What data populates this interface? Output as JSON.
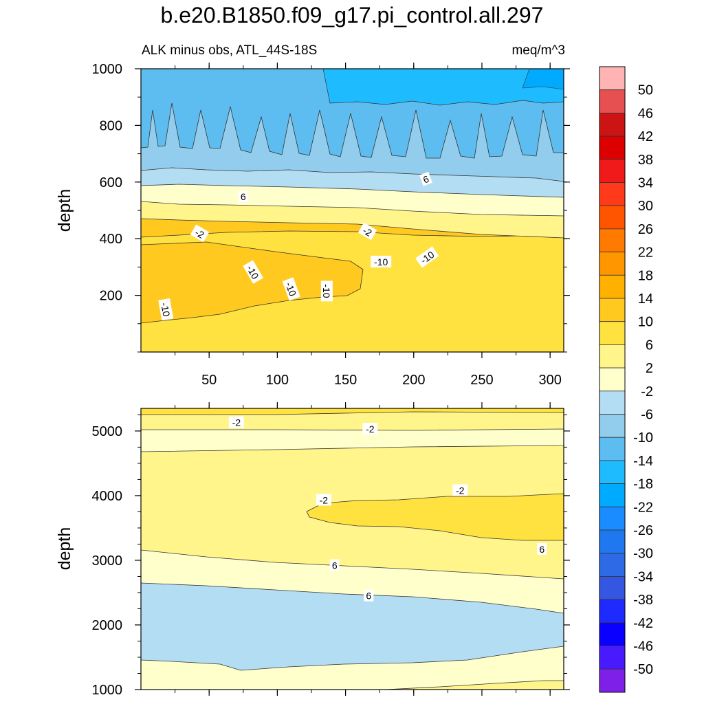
{
  "title": "b.e20.B1850.f09_g17.pi_control.all.297",
  "subtitle_left": "ALK minus obs, ATL_44S-18S",
  "subtitle_right": "meq/m^3",
  "colors": {
    "levels": [
      {
        "label": "50",
        "color": "#ffb3b3"
      },
      {
        "label": "46",
        "color": "#e65050"
      },
      {
        "label": "42",
        "color": "#cc1414"
      },
      {
        "label": "38",
        "color": "#dc0000"
      },
      {
        "label": "34",
        "color": "#f01a1a"
      },
      {
        "label": "30",
        "color": "#ff3a1a"
      },
      {
        "label": "26",
        "color": "#ff5500"
      },
      {
        "label": "22",
        "color": "#ff7a00"
      },
      {
        "label": "18",
        "color": "#ff9600"
      },
      {
        "label": "14",
        "color": "#ffb000"
      },
      {
        "label": "10",
        "color": "#ffc91f"
      },
      {
        "label": "6",
        "color": "#ffe23f"
      },
      {
        "label": "2",
        "color": "#fff58a"
      },
      {
        "label": "-2",
        "color": "#ffffcc"
      },
      {
        "label": "-6",
        "color": "#b3ddf2"
      },
      {
        "label": "-10",
        "color": "#93cdee"
      },
      {
        "label": "-14",
        "color": "#5ebdf0"
      },
      {
        "label": "-18",
        "color": "#1ebcff"
      },
      {
        "label": "-22",
        "color": "#00aaff"
      },
      {
        "label": "-26",
        "color": "#1a8cff"
      },
      {
        "label": "-30",
        "color": "#1f78f0"
      },
      {
        "label": "-34",
        "color": "#2e6ae6"
      },
      {
        "label": "-38",
        "color": "#3556e0"
      },
      {
        "label": "-42",
        "color": "#1f2aff"
      },
      {
        "label": "-46",
        "color": "#0a00ff"
      },
      {
        "label": "-50",
        "color": "#4a1aff"
      },
      {
        "label": "",
        "color": "#7f20e8"
      }
    ]
  },
  "chart_data": [
    {
      "type": "contour",
      "panel": "upper",
      "xlabel": "",
      "ylabel": "depth",
      "xlim": [
        0,
        310
      ],
      "ylim": [
        1000,
        0
      ],
      "x_ticks": [
        50,
        100,
        150,
        200,
        250,
        300
      ],
      "x_tick_labels": [
        "50",
        "100",
        "150",
        "200",
        "250",
        "300"
      ],
      "y_ticks": [
        200,
        400,
        600,
        800,
        1000
      ],
      "y_tick_labels": [
        "200",
        "400",
        "600",
        "800",
        "1000"
      ],
      "contour_labels": [
        {
          "text": "-10",
          "x": 18,
          "y": 150,
          "angle": 80
        },
        {
          "text": "-10",
          "x": 110,
          "y": 222,
          "angle": 70
        },
        {
          "text": "-10",
          "x": 136,
          "y": 215,
          "angle": 90
        },
        {
          "text": "-10",
          "x": 82,
          "y": 282,
          "angle": 60
        },
        {
          "text": "-10",
          "x": 176,
          "y": 318,
          "angle": 0
        },
        {
          "text": "-10",
          "x": 210,
          "y": 334,
          "angle": -35
        },
        {
          "text": "-2",
          "x": 43,
          "y": 418,
          "angle": 30
        },
        {
          "text": "-2",
          "x": 166,
          "y": 425,
          "angle": 30
        },
        {
          "text": "6",
          "x": 75,
          "y": 548,
          "angle": 0
        },
        {
          "text": "6",
          "x": 209,
          "y": 610,
          "angle": -20
        }
      ]
    },
    {
      "type": "contour",
      "panel": "lower",
      "xlabel": "",
      "ylabel": "depth",
      "xlim": [
        0,
        310
      ],
      "ylim": [
        5350,
        1000
      ],
      "y_ticks": [
        1000,
        2000,
        3000,
        4000,
        5000
      ],
      "y_tick_labels": [
        "1000",
        "2000",
        "3000",
        "4000",
        "5000"
      ],
      "contour_labels": [
        {
          "text": "6",
          "x": 167,
          "y": 2450,
          "angle": 0
        },
        {
          "text": "6",
          "x": 142,
          "y": 2920,
          "angle": 0
        },
        {
          "text": "6",
          "x": 294,
          "y": 3170,
          "angle": 0
        },
        {
          "text": "-2",
          "x": 134,
          "y": 3930,
          "angle": 0
        },
        {
          "text": "-2",
          "x": 234,
          "y": 4080,
          "angle": 0
        },
        {
          "text": "-2",
          "x": 70,
          "y": 5130,
          "angle": 0
        },
        {
          "text": "-2",
          "x": 168,
          "y": 5030,
          "angle": 0
        }
      ]
    }
  ]
}
